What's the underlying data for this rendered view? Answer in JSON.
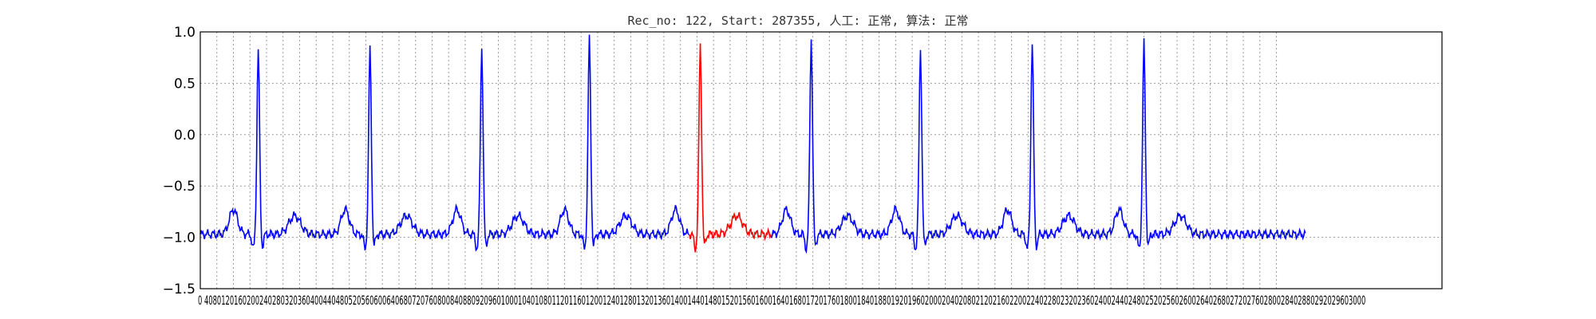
{
  "chart_data": {
    "type": "line",
    "title": "Rec_no: 122, Start: 287355, 人工: 正常, 算法: 正常",
    "xlabel": "",
    "ylabel": "",
    "xlim": [
      0,
      1500
    ],
    "ylim": [
      -1.5,
      1.0
    ],
    "grid": true,
    "yticks": [
      1.0,
      0.5,
      0.0,
      -0.5,
      -1.0,
      -1.5
    ],
    "ytick_labels": [
      "1.0",
      "0.5",
      "0.0",
      "−0.5",
      "−1.0",
      "−1.5"
    ],
    "xticks": [
      0,
      20,
      40,
      60,
      80,
      100,
      120,
      140,
      160,
      180,
      200,
      220,
      240,
      260,
      280,
      300,
      320,
      340,
      360,
      380,
      400,
      420,
      440,
      460,
      480,
      500,
      520,
      540,
      560,
      580,
      600,
      620,
      640,
      660,
      680,
      700,
      720,
      740,
      760,
      780,
      800,
      820,
      840,
      860,
      880,
      900,
      920,
      940,
      960,
      980,
      1000,
      1020,
      1040,
      1060,
      1080,
      1100,
      1120,
      1140,
      1160,
      1180,
      1200,
      1220,
      1240,
      1260,
      1280,
      1300
    ],
    "xtick_labels": [
      "0",
      "4",
      "0",
      "8",
      "0",
      "1",
      "2",
      "0",
      "1",
      "6",
      "0",
      "2",
      "0",
      "2",
      "4",
      "0",
      "2",
      "8",
      "0",
      "3",
      "2",
      "0",
      "3",
      "6",
      "0",
      "4",
      "0",
      "0",
      "4",
      "4",
      "0",
      "4",
      "8",
      "0",
      "5",
      "2",
      "0",
      "5",
      "6",
      "0",
      "6",
      "0",
      "0",
      "6",
      "4",
      "0",
      "6",
      "8",
      "0",
      "7",
      "2",
      "0",
      "7",
      "6",
      "0",
      "8",
      "0",
      "0",
      "8",
      "4",
      "0",
      "8",
      "8",
      "0",
      "9",
      "2"
    ],
    "xtick_text": "0 4080120160200240280320360400440480520560600640680720760800840880920960100010401080112011601200124012801320136014001440148015201560160016401680172017601800184018801920196020002040208021202160220022402280232023602400244024802520256026002640268027202760280028402880292029603000",
    "series": [
      {
        "color": "#0000ff",
        "beats": [
          70,
          205,
          340,
          470,
          738,
          870,
          1005,
          1140
        ],
        "baseline": -0.97,
        "peaks": [
          0.76,
          0.76,
          0.78,
          0.86,
          0.86,
          0.76,
          0.82,
          0.81
        ]
      },
      {
        "color": "#ff0000",
        "beats": [
          604
        ],
        "baseline": -0.95,
        "peaks": [
          0.8
        ],
        "segment": [
          590,
          690
        ]
      }
    ]
  }
}
